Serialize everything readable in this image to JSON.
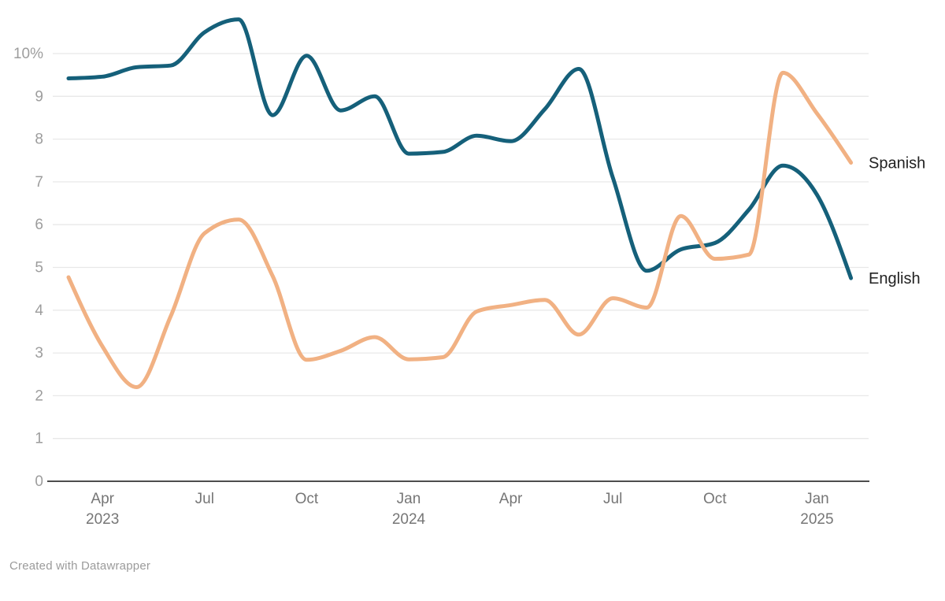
{
  "footer": {
    "credit": "Created with Datawrapper"
  },
  "chart_data": {
    "type": "line",
    "x": [
      "Mar 2023",
      "Apr 2023",
      "May 2023",
      "Jun 2023",
      "Jul 2023",
      "Aug 2023",
      "Sep 2023",
      "Oct 2023",
      "Nov 2023",
      "Dec 2023",
      "Jan 2024",
      "Feb 2024",
      "Mar 2024",
      "Apr 2024",
      "May 2024",
      "Jun 2024",
      "Jul 2024",
      "Aug 2024",
      "Sep 2024",
      "Oct 2024",
      "Nov 2024",
      "Dec 2024",
      "Jan 2025",
      "Feb 2025"
    ],
    "series": [
      {
        "name": "English",
        "color": "#15607a",
        "values": [
          9.42,
          9.46,
          9.68,
          9.72,
          10.5,
          10.8,
          8.56,
          9.95,
          8.67,
          9.0,
          7.66,
          7.7,
          8.08,
          7.95,
          8.7,
          9.64,
          7.1,
          4.92,
          5.42,
          5.57,
          6.35,
          7.38,
          6.7,
          4.75
        ]
      },
      {
        "name": "Spanish",
        "color": "#f1b183",
        "values": [
          4.77,
          3.15,
          2.2,
          3.85,
          5.8,
          6.12,
          4.8,
          2.84,
          3.05,
          3.37,
          2.85,
          2.9,
          3.97,
          4.12,
          4.24,
          3.43,
          4.28,
          4.06,
          6.2,
          5.2,
          5.3,
          9.55,
          8.6,
          7.45
        ]
      }
    ],
    "ylim": [
      0,
      10.8
    ],
    "yticks": [
      0,
      1,
      2,
      3,
      4,
      5,
      6,
      7,
      8,
      9,
      10
    ],
    "ytick_labels": [
      "0",
      "1",
      "2",
      "3",
      "4",
      "5",
      "6",
      "7",
      "8",
      "9",
      "10%"
    ],
    "xticks": [
      {
        "index": 1,
        "month": "Apr",
        "year": "2023"
      },
      {
        "index": 4,
        "month": "Jul",
        "year": ""
      },
      {
        "index": 7,
        "month": "Oct",
        "year": ""
      },
      {
        "index": 10,
        "month": "Jan",
        "year": "2024"
      },
      {
        "index": 13,
        "month": "Apr",
        "year": ""
      },
      {
        "index": 16,
        "month": "Jul",
        "year": ""
      },
      {
        "index": 19,
        "month": "Oct",
        "year": ""
      },
      {
        "index": 22,
        "month": "Jan",
        "year": "2025"
      }
    ],
    "grid": true,
    "legend_position": "line-end-right",
    "colors": {
      "grid": "#e8e8e8",
      "axis": "#4d4d4d",
      "ytick_text": "#9d9d9d",
      "xtick_text": "#767676",
      "label_text": "#222222"
    }
  }
}
